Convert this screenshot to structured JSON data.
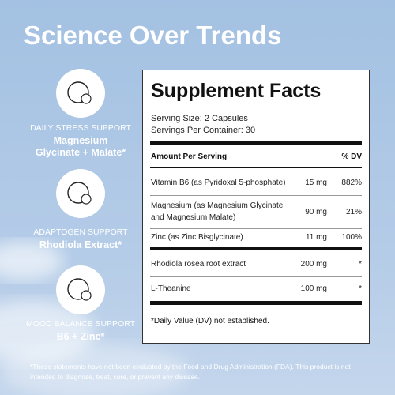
{
  "title": "Science Over Trends",
  "features": [
    {
      "label": "DAILY STRESS SUPPORT",
      "name_lines": [
        "Magnesium",
        "Glycinate + Malate*"
      ]
    },
    {
      "label": "ADAPTOGEN SUPPORT",
      "name_lines": [
        "Rhodiola Extract*"
      ]
    },
    {
      "label": "MOOD BALANCE SUPPORT",
      "name_lines": [
        "B6 + Zinc*"
      ]
    }
  ],
  "facts": {
    "title": "Supplement Facts",
    "serving_size": "Serving Size: 2 Capsules",
    "servings_per_container": "Servings Per Container: 30",
    "header": {
      "amount": "Amount Per Serving",
      "dv": "% DV"
    },
    "rows": [
      {
        "name_lines": [
          "Vitamin B6 (as Pyridoxal 5-phosphate)"
        ],
        "amount": "15 mg",
        "dv": "882%"
      },
      {
        "name_lines": [
          "Magnesium (as Magnesium Glycinate",
          "and Magnesium Malate)"
        ],
        "amount": "90 mg",
        "dv": "21%"
      },
      {
        "name_lines": [
          "Zinc (as Zinc Bisglycinate)"
        ],
        "amount": "11 mg",
        "dv": "100%"
      },
      {
        "name_lines": [
          "Rhodiola rosea root extract"
        ],
        "amount": "200 mg",
        "dv": "*"
      },
      {
        "name_lines": [
          "L-Theanine"
        ],
        "amount": "100 mg",
        "dv": "*"
      }
    ],
    "footnote": "*Daily Value (DV) not established."
  },
  "disclaimer_lines": [
    "*These statements have not been evaluated by the Food and Drug Administration (FDA). This product is not",
    "intended to diagnose, treat, cure, or prevent any disease."
  ]
}
